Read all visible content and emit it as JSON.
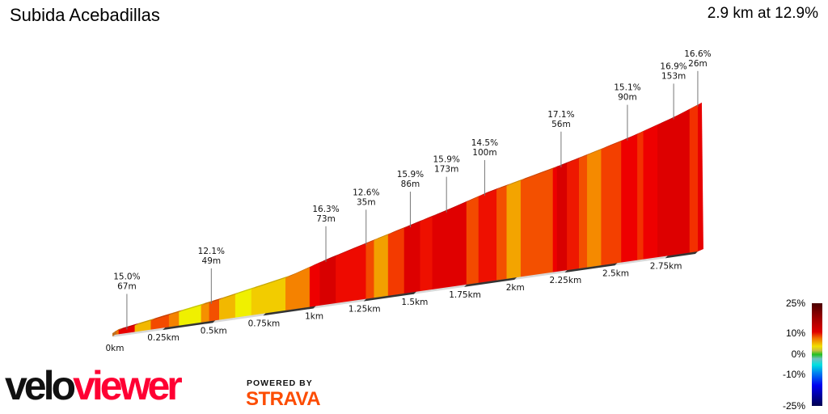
{
  "header": {
    "title": "Subida Acebadillas",
    "summary": "2.9 km at 12.9%"
  },
  "chart_data": {
    "type": "area",
    "title": "Subida Acebadillas",
    "total_distance_km": 2.9,
    "average_gradient_pct": 12.9,
    "profile": {
      "distance_km": [
        0,
        0.5,
        0.86,
        1.04,
        1.26,
        1.44,
        1.64,
        1.84,
        2.0,
        2.2,
        2.4,
        2.55,
        2.77,
        2.9
      ],
      "elevation_gain_m": [
        0,
        42,
        77,
        106,
        137,
        162,
        190,
        221,
        240,
        264,
        291,
        312,
        348,
        374
      ]
    },
    "segments": [
      {
        "end_km": 0.02,
        "color": "#f07000"
      },
      {
        "end_km": 0.1,
        "color": "#e80000"
      },
      {
        "end_km": 0.18,
        "color": "#f2b800"
      },
      {
        "end_km": 0.27,
        "color": "#f34a00"
      },
      {
        "end_km": 0.32,
        "color": "#f58200"
      },
      {
        "end_km": 0.43,
        "color": "#f0f000"
      },
      {
        "end_km": 0.47,
        "color": "#f59000"
      },
      {
        "end_km": 0.52,
        "color": "#f35000"
      },
      {
        "end_km": 0.6,
        "color": "#f2b800"
      },
      {
        "end_km": 0.68,
        "color": "#f0f000"
      },
      {
        "end_km": 0.85,
        "color": "#f2cc00"
      },
      {
        "end_km": 0.97,
        "color": "#f58200"
      },
      {
        "end_km": 1.02,
        "color": "#ee0000"
      },
      {
        "end_km": 1.1,
        "color": "#d80000"
      },
      {
        "end_km": 1.25,
        "color": "#ee0a00"
      },
      {
        "end_km": 1.29,
        "color": "#f34a00"
      },
      {
        "end_km": 1.36,
        "color": "#f2a000"
      },
      {
        "end_km": 1.44,
        "color": "#f33a00"
      },
      {
        "end_km": 1.52,
        "color": "#dd0000"
      },
      {
        "end_km": 1.58,
        "color": "#ee1000"
      },
      {
        "end_km": 1.75,
        "color": "#e00000"
      },
      {
        "end_km": 1.81,
        "color": "#f34a00"
      },
      {
        "end_km": 1.9,
        "color": "#ee1000"
      },
      {
        "end_km": 1.95,
        "color": "#f35000"
      },
      {
        "end_km": 2.02,
        "color": "#f3a400"
      },
      {
        "end_km": 2.18,
        "color": "#f35000"
      },
      {
        "end_km": 2.2,
        "color": "#ee0000"
      },
      {
        "end_km": 2.25,
        "color": "#d80000"
      },
      {
        "end_km": 2.31,
        "color": "#ee1800"
      },
      {
        "end_km": 2.35,
        "color": "#f35000"
      },
      {
        "end_km": 2.42,
        "color": "#f58a00"
      },
      {
        "end_km": 2.52,
        "color": "#f34000"
      },
      {
        "end_km": 2.6,
        "color": "#ee0000"
      },
      {
        "end_km": 2.63,
        "color": "#f33000"
      },
      {
        "end_km": 2.7,
        "color": "#ee0000"
      },
      {
        "end_km": 2.86,
        "color": "#dd0000"
      },
      {
        "end_km": 2.9,
        "color": "#f33000"
      }
    ],
    "x_ticks": [
      "0km",
      "0.25km",
      "0.5km",
      "0.75km",
      "1km",
      "1.25km",
      "1.5km",
      "1.75km",
      "2km",
      "2.25km",
      "2.5km",
      "2.75km"
    ],
    "x_tick_values": [
      0,
      0.25,
      0.5,
      0.75,
      1,
      1.25,
      1.5,
      1.75,
      2,
      2.25,
      2.5,
      2.75
    ],
    "annotations": [
      {
        "km": 0.06,
        "gradient": "15.0%",
        "length": "67m"
      },
      {
        "km": 0.48,
        "gradient": "12.1%",
        "length": "49m"
      },
      {
        "km": 1.05,
        "gradient": "16.3%",
        "length": "73m"
      },
      {
        "km": 1.25,
        "gradient": "12.6%",
        "length": "35m"
      },
      {
        "km": 1.47,
        "gradient": "15.9%",
        "length": "86m"
      },
      {
        "km": 1.65,
        "gradient": "15.9%",
        "length": "173m"
      },
      {
        "km": 1.84,
        "gradient": "14.5%",
        "length": "100m"
      },
      {
        "km": 2.22,
        "gradient": "17.1%",
        "length": "56m"
      },
      {
        "km": 2.55,
        "gradient": "15.1%",
        "length": "90m"
      },
      {
        "km": 2.78,
        "gradient": "16.9%",
        "length": "153m"
      },
      {
        "km": 2.9,
        "gradient": "16.6%",
        "length": "26m"
      }
    ],
    "legend": {
      "labels": [
        "25%",
        "10%",
        "0%",
        "-10%",
        "-25%"
      ],
      "type": "gradient color scale"
    }
  },
  "branding": {
    "logo_part1": "velo",
    "logo_part2": "viewer",
    "powered_by": "POWERED BY",
    "strava": "STRAVA"
  }
}
